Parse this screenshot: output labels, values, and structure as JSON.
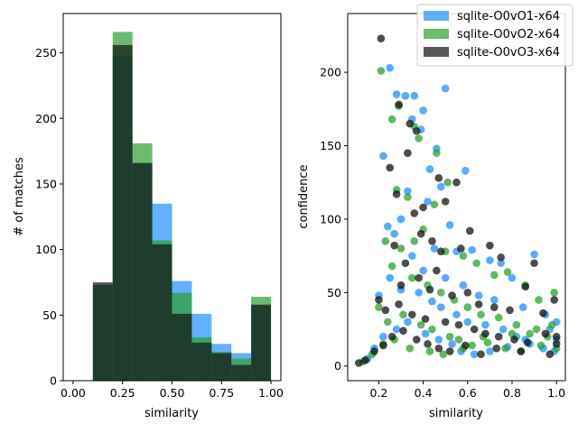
{
  "chart_data": [
    {
      "type": "bar",
      "subtype": "overlaid-histogram",
      "xlabel": "similarity",
      "ylabel": "# of matches",
      "xlim": [
        -0.05,
        1.05
      ],
      "ylim": [
        0,
        280
      ],
      "xticks": [
        "0.00",
        "0.25",
        "0.50",
        "0.75",
        "1.00"
      ],
      "yticks": [
        "0",
        "50",
        "100",
        "150",
        "200",
        "250"
      ],
      "bin_edges": [
        0.1,
        0.2,
        0.3,
        0.4,
        0.5,
        0.6,
        0.7,
        0.8,
        0.9,
        1.0
      ],
      "series": [
        {
          "name": "sqlite-O0vO1-x64",
          "color": "#1f8fff",
          "values": [
            73,
            248,
            166,
            135,
            76,
            51,
            28,
            21,
            57
          ]
        },
        {
          "name": "sqlite-O0vO2-x64",
          "color": "#2ca02c",
          "values": [
            73,
            266,
            181,
            107,
            67,
            33,
            22,
            17,
            64
          ]
        },
        {
          "name": "sqlite-O0vO3-x64",
          "color": "#111111",
          "values": [
            75,
            256,
            166,
            104,
            51,
            29,
            21,
            12,
            58
          ]
        }
      ]
    },
    {
      "type": "scatter",
      "xlabel": "similarity",
      "ylabel": "confidence",
      "xlim": [
        0.06,
        1.04
      ],
      "ylim": [
        -10,
        240
      ],
      "xticks": [
        "0.2",
        "0.4",
        "0.6",
        "0.8",
        "1.0"
      ],
      "yticks": [
        "0",
        "50",
        "100",
        "150",
        "200"
      ],
      "series": [
        {
          "name": "sqlite-O0vO1-x64",
          "color": "#1f8fff",
          "points": [
            [
              0.22,
              143
            ],
            [
              0.25,
              203
            ],
            [
              0.28,
              185
            ],
            [
              0.32,
              184
            ],
            [
              0.36,
              184
            ],
            [
              0.35,
              168
            ],
            [
              0.4,
              174
            ],
            [
              0.39,
              161
            ],
            [
              0.46,
              148
            ],
            [
              0.5,
              189
            ],
            [
              0.59,
              133
            ],
            [
              0.43,
              134
            ],
            [
              0.48,
              122
            ],
            [
              0.52,
              96
            ],
            [
              0.42,
              112
            ],
            [
              0.33,
              119
            ],
            [
              0.3,
              100
            ],
            [
              0.27,
              90
            ],
            [
              0.24,
              95
            ],
            [
              0.45,
              80
            ],
            [
              0.55,
              78
            ],
            [
              0.62,
              79
            ],
            [
              0.7,
              72
            ],
            [
              0.75,
              70
            ],
            [
              0.8,
              60
            ],
            [
              0.9,
              76
            ],
            [
              0.35,
              75
            ],
            [
              0.4,
              65
            ],
            [
              0.5,
              60
            ],
            [
              0.58,
              55
            ],
            [
              0.65,
              48
            ],
            [
              0.72,
              45
            ],
            [
              0.85,
              40
            ],
            [
              0.95,
              35
            ],
            [
              1.0,
              30
            ],
            [
              0.2,
              48
            ],
            [
              0.25,
              60
            ],
            [
              0.3,
              52
            ],
            [
              0.38,
              50
            ],
            [
              0.44,
              44
            ],
            [
              0.48,
              40
            ],
            [
              0.55,
              35
            ],
            [
              0.6,
              30
            ],
            [
              0.68,
              28
            ],
            [
              0.76,
              25
            ],
            [
              0.82,
              20
            ],
            [
              0.88,
              15
            ],
            [
              0.94,
              12
            ],
            [
              0.99,
              10
            ],
            [
              0.15,
              5
            ],
            [
              0.18,
              12
            ],
            [
              0.22,
              20
            ],
            [
              0.28,
              25
            ],
            [
              0.33,
              30
            ],
            [
              0.41,
              22
            ],
            [
              0.47,
              18
            ],
            [
              0.53,
              15
            ],
            [
              0.57,
              10
            ],
            [
              0.63,
              8
            ],
            [
              0.7,
              10
            ],
            [
              0.78,
              13
            ],
            [
              0.86,
              18
            ],
            [
              0.97,
              25
            ],
            [
              1.0,
              18
            ]
          ]
        },
        {
          "name": "sqlite-O0vO2-x64",
          "color": "#2ca02c",
          "points": [
            [
              0.21,
              201
            ],
            [
              0.26,
              168
            ],
            [
              0.29,
              177
            ],
            [
              0.36,
              163
            ],
            [
              0.38,
              155
            ],
            [
              0.46,
              145
            ],
            [
              0.51,
              125
            ],
            [
              0.28,
              120
            ],
            [
              0.33,
              115
            ],
            [
              0.45,
              110
            ],
            [
              0.4,
              93
            ],
            [
              0.36,
              85
            ],
            [
              0.3,
              80
            ],
            [
              0.23,
              85
            ],
            [
              0.26,
              68
            ],
            [
              0.5,
              78
            ],
            [
              0.58,
              75
            ],
            [
              0.64,
              70
            ],
            [
              0.72,
              62
            ],
            [
              0.78,
              64
            ],
            [
              0.86,
              55
            ],
            [
              0.99,
              50
            ],
            [
              0.92,
              45
            ],
            [
              0.35,
              60
            ],
            [
              0.42,
              55
            ],
            [
              0.48,
              50
            ],
            [
              0.54,
              45
            ],
            [
              0.6,
              40
            ],
            [
              0.66,
              35
            ],
            [
              0.74,
              33
            ],
            [
              0.82,
              28
            ],
            [
              0.88,
              22
            ],
            [
              0.96,
              20
            ],
            [
              0.2,
              40
            ],
            [
              0.24,
              30
            ],
            [
              0.31,
              35
            ],
            [
              0.39,
              28
            ],
            [
              0.44,
              25
            ],
            [
              0.52,
              20
            ],
            [
              0.56,
              18
            ],
            [
              0.62,
              14
            ],
            [
              0.69,
              16
            ],
            [
              0.77,
              12
            ],
            [
              0.84,
              10
            ],
            [
              0.93,
              14
            ],
            [
              1.0,
              12
            ],
            [
              0.13,
              3
            ],
            [
              0.17,
              8
            ],
            [
              0.22,
              15
            ],
            [
              0.27,
              18
            ],
            [
              0.34,
              12
            ],
            [
              0.43,
              10
            ],
            [
              0.49,
              8
            ],
            [
              0.58,
              12
            ],
            [
              0.67,
              20
            ],
            [
              0.8,
              22
            ],
            [
              0.91,
              25
            ],
            [
              0.98,
              28
            ]
          ]
        },
        {
          "name": "sqlite-O0vO3-x64",
          "color": "#111111",
          "points": [
            [
              0.21,
              223
            ],
            [
              0.29,
              178
            ],
            [
              0.34,
              165
            ],
            [
              0.37,
              160
            ],
            [
              0.33,
              145
            ],
            [
              0.25,
              135
            ],
            [
              0.28,
              117
            ],
            [
              0.47,
              128
            ],
            [
              0.5,
              112
            ],
            [
              0.4,
              108
            ],
            [
              0.36,
              104
            ],
            [
              0.55,
              125
            ],
            [
              0.61,
              92
            ],
            [
              0.39,
              90
            ],
            [
              0.44,
              85
            ],
            [
              0.27,
              82
            ],
            [
              0.32,
              70
            ],
            [
              0.48,
              78
            ],
            [
              0.57,
              80
            ],
            [
              0.7,
              82
            ],
            [
              0.75,
              74
            ],
            [
              0.9,
              70
            ],
            [
              0.99,
              45
            ],
            [
              0.3,
              55
            ],
            [
              0.38,
              60
            ],
            [
              0.43,
              52
            ],
            [
              0.46,
              65
            ],
            [
              0.53,
              48
            ],
            [
              0.6,
              50
            ],
            [
              0.65,
              42
            ],
            [
              0.72,
              40
            ],
            [
              0.79,
              38
            ],
            [
              0.86,
              54
            ],
            [
              0.94,
              36
            ],
            [
              0.2,
              45
            ],
            [
              0.23,
              38
            ],
            [
              0.29,
              42
            ],
            [
              0.35,
              35
            ],
            [
              0.41,
              32
            ],
            [
              0.5,
              30
            ],
            [
              0.56,
              28
            ],
            [
              0.63,
              25
            ],
            [
              0.68,
              22
            ],
            [
              0.74,
              20
            ],
            [
              0.81,
              18
            ],
            [
              0.87,
              16
            ],
            [
              0.95,
              22
            ],
            [
              1.0,
              15
            ],
            [
              0.11,
              2
            ],
            [
              0.14,
              4
            ],
            [
              0.18,
              10
            ],
            [
              0.22,
              14
            ],
            [
              0.26,
              20
            ],
            [
              0.31,
              24
            ],
            [
              0.37,
              18
            ],
            [
              0.42,
              15
            ],
            [
              0.47,
              12
            ],
            [
              0.52,
              10
            ],
            [
              0.59,
              14
            ],
            [
              0.66,
              8
            ],
            [
              0.73,
              12
            ],
            [
              0.84,
              10
            ],
            [
              0.97,
              8
            ],
            [
              1.0,
              20
            ]
          ]
        }
      ]
    }
  ],
  "legend": {
    "placement": "top-right",
    "entries": [
      "sqlite-O0vO1-x64",
      "sqlite-O0vO2-x64",
      "sqlite-O0vO3-x64"
    ]
  }
}
